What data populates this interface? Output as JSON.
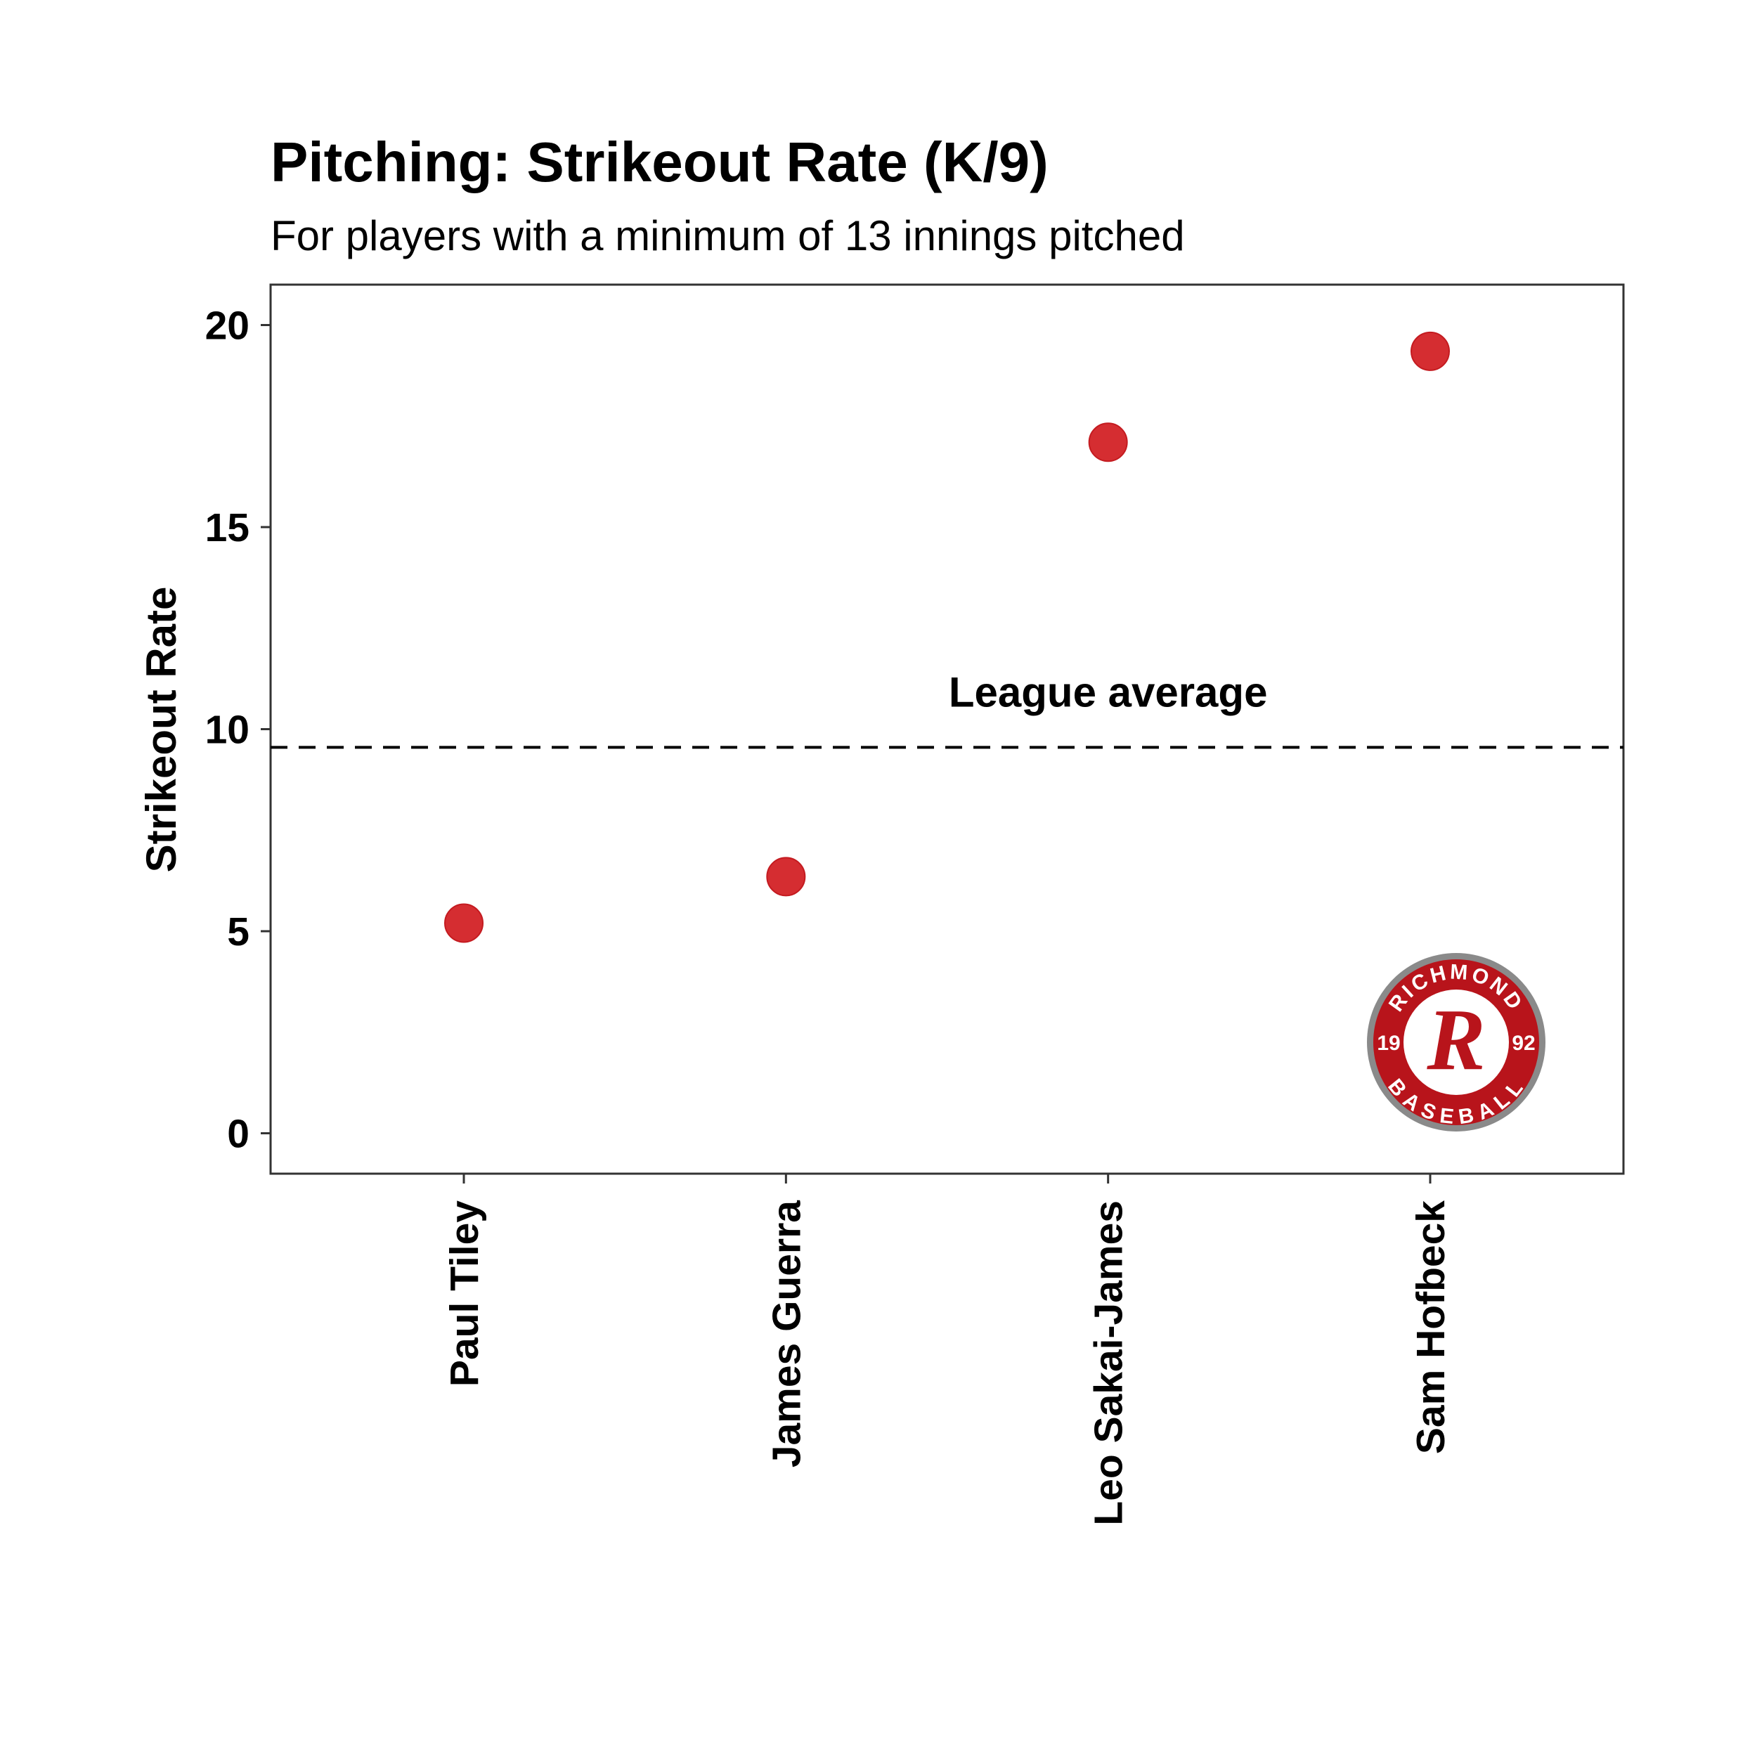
{
  "chart_data": {
    "type": "scatter",
    "title": "Pitching: Strikeout Rate (K/9)",
    "subtitle": "For players with a minimum of 13 innings pitched",
    "xlabel": "",
    "ylabel": "Strikeout Rate",
    "categories": [
      "Paul Tiley",
      "James Guerra",
      "Leo Sakai-James",
      "Sam Hofbeck"
    ],
    "values": [
      5.2,
      6.35,
      17.1,
      19.35
    ],
    "ylim": [
      -1,
      21
    ],
    "yticks": [
      0,
      5,
      10,
      15,
      20
    ],
    "grid": false,
    "reference_line": {
      "value": 9.55,
      "label": "League average",
      "style": "dashed"
    },
    "point_color": "#d32226"
  },
  "logo": {
    "top_text": "RICHMOND",
    "bottom_text": "BASEBALL",
    "left_year": "19",
    "right_year": "92",
    "letter": "R",
    "colors": {
      "primary": "#b8141b",
      "ring": "#8a8a8a",
      "center": "#ffffff"
    }
  }
}
